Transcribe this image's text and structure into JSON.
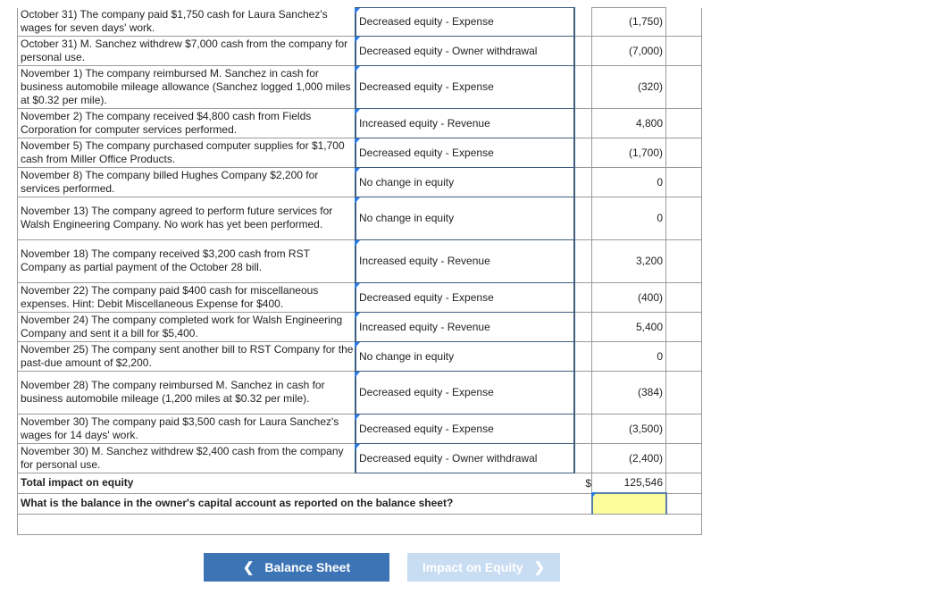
{
  "rows": [
    {
      "description": "October 31) The company paid $1,750 cash for Laura Sanchez's wages for seven days' work.",
      "classification": "Decreased equity - Expense",
      "amount": "(1,750)"
    },
    {
      "description": "October 31) M. Sanchez withdrew $7,000 cash from the company for personal use.",
      "classification": "Decreased equity - Owner withdrawal",
      "amount": "(7,000)"
    },
    {
      "description": "November 1) The company reimbursed M. Sanchez in cash for business automobile mileage allowance (Sanchez logged 1,000 miles at $0.32 per mile).",
      "classification": "Decreased equity - Expense",
      "amount": "(320)"
    },
    {
      "description": "November 2) The company received $4,800 cash from Fields Corporation for computer services performed.",
      "classification": "Increased equity - Revenue",
      "amount": "4,800"
    },
    {
      "description": "November 5) The company purchased computer supplies for $1,700 cash from Miller Office Products.",
      "classification": "Decreased equity - Expense",
      "amount": "(1,700)"
    },
    {
      "description": "November 8) The company billed Hughes Company $2,200 for services performed.",
      "classification": "No change in equity",
      "amount": "0"
    },
    {
      "description": "November 13) The company agreed to perform future services for Walsh Engineering Company. No work has yet been performed.",
      "classification": "No change in equity",
      "amount": "0"
    },
    {
      "description": "November 18) The company received $3,200 cash from RST Company as partial payment of the October 28 bill.",
      "classification": "Increased equity - Revenue",
      "amount": "3,200"
    },
    {
      "description": "November 22) The company paid $400 cash for miscellaneous expenses. Hint: Debit Miscellaneous Expense for $400.",
      "classification": "Decreased equity - Expense",
      "amount": "(400)"
    },
    {
      "description": "November 24) The company completed work for Walsh Engineering Company and sent it a bill for $5,400.",
      "classification": "Increased equity - Revenue",
      "amount": "5,400"
    },
    {
      "description": "November 25) The company sent another bill to RST Company for the past-due amount of $2,200.",
      "classification": "No change in equity",
      "amount": "0"
    },
    {
      "description": "November 28) The company reimbursed M. Sanchez in cash for business automobile mileage (1,200 miles at $0.32 per mile).",
      "classification": "Decreased equity - Expense",
      "amount": "(384)"
    },
    {
      "description": "November 30) The company paid $3,500 cash for Laura Sanchez's wages for 14 days' work.",
      "classification": "Decreased equity - Expense",
      "amount": "(3,500)"
    },
    {
      "description": "November 30) M. Sanchez withdrew $2,400 cash from the company for personal use.",
      "classification": "Decreased equity - Owner withdrawal",
      "amount": "(2,400)"
    }
  ],
  "total": {
    "label": "Total impact on equity",
    "currency": "$",
    "amount": "125,546"
  },
  "question": {
    "label": "What is the balance in the owner's capital account as reported on the balance sheet?",
    "answer": ""
  },
  "nav": {
    "prev_label": "Balance Sheet",
    "next_label": "Impact on Equity"
  },
  "colors": {
    "primary_button": "#3d74b5",
    "disabled_button": "#c8dcf2",
    "answer_highlight": "#fdfd9b",
    "marker": "#2a7ae2"
  }
}
